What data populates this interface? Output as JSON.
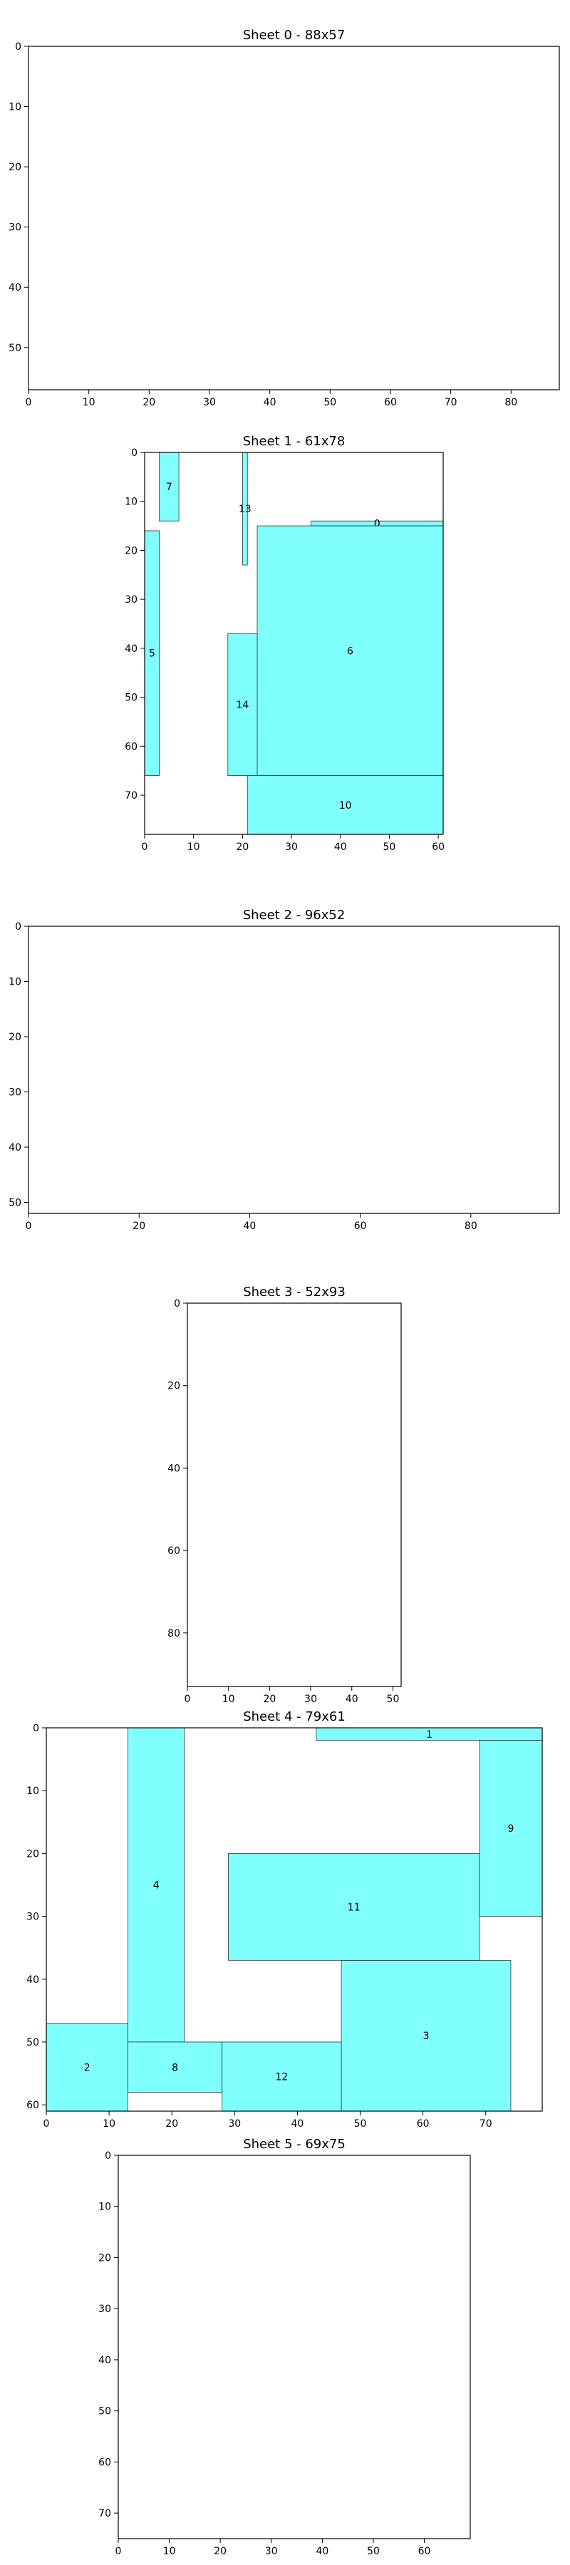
{
  "chart_data": [
    {
      "type": "bin-packing",
      "title": "Sheet 0 - 88x57",
      "width": 88,
      "height": 57,
      "xticks": [
        0,
        10,
        20,
        30,
        40,
        50,
        60,
        70,
        80
      ],
      "yticks": [
        0,
        10,
        20,
        30,
        40,
        50
      ],
      "fill": "#80ffff",
      "rects": []
    },
    {
      "type": "bin-packing",
      "title": "Sheet 1 - 61x78",
      "width": 61,
      "height": 78,
      "xticks": [
        0,
        10,
        20,
        30,
        40,
        50,
        60
      ],
      "yticks": [
        0,
        10,
        20,
        30,
        40,
        50,
        60,
        70
      ],
      "fill": "#80ffff",
      "rects": [
        {
          "id": "0",
          "x": 34,
          "y": 14,
          "w": 27,
          "h": 1
        },
        {
          "id": "5",
          "x": 0,
          "y": 16,
          "w": 3,
          "h": 50
        },
        {
          "id": "6",
          "x": 23,
          "y": 15,
          "w": 38,
          "h": 51
        },
        {
          "id": "7",
          "x": 3,
          "y": 0,
          "w": 4,
          "h": 14
        },
        {
          "id": "10",
          "x": 21,
          "y": 66,
          "w": 40,
          "h": 12
        },
        {
          "id": "13",
          "x": 20,
          "y": 0,
          "w": 1,
          "h": 23
        },
        {
          "id": "14",
          "x": 17,
          "y": 37,
          "w": 6,
          "h": 29
        }
      ]
    },
    {
      "type": "bin-packing",
      "title": "Sheet 2 - 96x52",
      "width": 96,
      "height": 52,
      "xticks": [
        0,
        20,
        40,
        60,
        80
      ],
      "yticks": [
        0,
        10,
        20,
        30,
        40,
        50
      ],
      "fill": "#80ffff",
      "rects": []
    },
    {
      "type": "bin-packing",
      "title": "Sheet 3 - 52x93",
      "width": 52,
      "height": 93,
      "xticks": [
        0,
        10,
        20,
        30,
        40,
        50
      ],
      "yticks": [
        0,
        20,
        40,
        60,
        80
      ],
      "fill": "#80ffff",
      "rects": []
    },
    {
      "type": "bin-packing",
      "title": "Sheet 4 - 79x61",
      "width": 79,
      "height": 61,
      "xticks": [
        0,
        10,
        20,
        30,
        40,
        50,
        60,
        70
      ],
      "yticks": [
        0,
        10,
        20,
        30,
        40,
        50,
        60
      ],
      "fill": "#80ffff",
      "rects": [
        {
          "id": "1",
          "x": 43,
          "y": 0,
          "w": 36,
          "h": 2
        },
        {
          "id": "2",
          "x": 0,
          "y": 47,
          "w": 13,
          "h": 14
        },
        {
          "id": "3",
          "x": 47,
          "y": 37,
          "w": 27,
          "h": 24
        },
        {
          "id": "4",
          "x": 13,
          "y": 0,
          "w": 9,
          "h": 50
        },
        {
          "id": "8",
          "x": 13,
          "y": 50,
          "w": 15,
          "h": 8
        },
        {
          "id": "9",
          "x": 69,
          "y": 2,
          "w": 10,
          "h": 28
        },
        {
          "id": "11",
          "x": 29,
          "y": 20,
          "w": 40,
          "h": 17
        },
        {
          "id": "12",
          "x": 28,
          "y": 50,
          "w": 19,
          "h": 11
        }
      ]
    },
    {
      "type": "bin-packing",
      "title": "Sheet 5 - 69x75",
      "width": 69,
      "height": 75,
      "xticks": [
        0,
        10,
        20,
        30,
        40,
        50,
        60
      ],
      "yticks": [
        0,
        10,
        20,
        30,
        40,
        50,
        60,
        70
      ],
      "fill": "#80ffff",
      "rects": []
    }
  ]
}
